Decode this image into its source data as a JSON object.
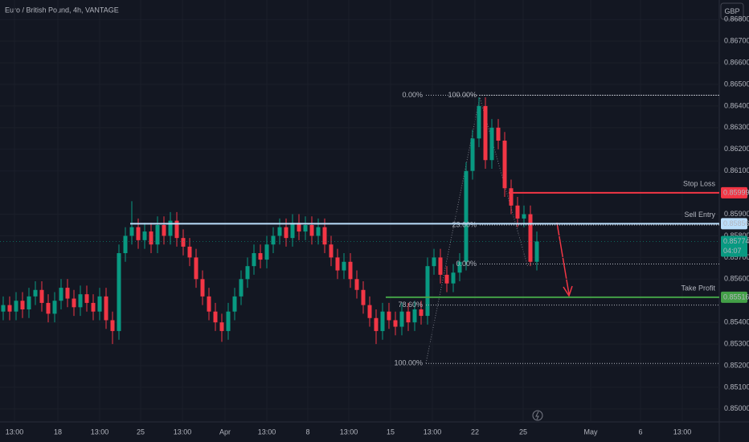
{
  "chart_data": {
    "type": "candlestick",
    "title": "Euro / British Pound, 4h, VANTAGE",
    "currency": "GBP",
    "ylim": [
      0.8494,
      0.8689
    ],
    "yticks": [
      {
        "value": 0.868,
        "label": "0.86800"
      },
      {
        "value": 0.867,
        "label": "0.86700"
      },
      {
        "value": 0.866,
        "label": "0.86600"
      },
      {
        "value": 0.865,
        "label": "0.86500"
      },
      {
        "value": 0.864,
        "label": "0.86400"
      },
      {
        "value": 0.863,
        "label": "0.86300"
      },
      {
        "value": 0.862,
        "label": "0.86200"
      },
      {
        "value": 0.861,
        "label": "0.86100"
      },
      {
        "value": 0.859,
        "label": "0.85900"
      },
      {
        "value": 0.858,
        "label": "0.85800"
      },
      {
        "value": 0.857,
        "label": "0.85700"
      },
      {
        "value": 0.856,
        "label": "0.85600"
      },
      {
        "value": 0.854,
        "label": "0.85400"
      },
      {
        "value": 0.853,
        "label": "0.85300"
      },
      {
        "value": 0.852,
        "label": "0.85200"
      },
      {
        "value": 0.851,
        "label": "0.85100"
      },
      {
        "value": 0.85,
        "label": "0.85000"
      }
    ],
    "x_labels": [
      "13:00",
      "18",
      "13:00",
      "25",
      "13:00",
      "Apr",
      "13:00",
      "8",
      "13:00",
      "15",
      "13:00",
      "22",
      "25",
      "May",
      "6",
      "13:00"
    ],
    "up_color": "#089981",
    "down_color": "#f23645",
    "open": [
      0.8545,
      0.8548,
      0.8545,
      0.855,
      0.8546,
      0.8552,
      0.8555,
      0.8549,
      0.8544,
      0.855,
      0.8556,
      0.8551,
      0.8547,
      0.8553,
      0.8549,
      0.8545,
      0.8552,
      0.8541,
      0.8536,
      0.8572,
      0.858,
      0.8584,
      0.8578,
      0.8582,
      0.8576,
      0.8585,
      0.858,
      0.8587,
      0.8579,
      0.8575,
      0.857,
      0.856,
      0.8552,
      0.8545,
      0.854,
      0.8536,
      0.8545,
      0.8552,
      0.856,
      0.8566,
      0.8572,
      0.8569,
      0.8576,
      0.858,
      0.8584,
      0.8579,
      0.8586,
      0.8582,
      0.8585,
      0.858,
      0.8584,
      0.8576,
      0.857,
      0.8564,
      0.8568,
      0.856,
      0.8555,
      0.8548,
      0.8542,
      0.8536,
      0.8545,
      0.8541,
      0.8538,
      0.8545,
      0.854,
      0.8546,
      0.8543,
      0.8566,
      0.857,
      0.8562,
      0.8558,
      0.8563,
      0.8568,
      0.861,
      0.8625,
      0.864,
      0.8615,
      0.863,
      0.8624,
      0.8602,
      0.8594,
      0.8588,
      0.859,
      0.8568
    ],
    "high": [
      0.8552,
      0.8552,
      0.8554,
      0.8554,
      0.8556,
      0.8559,
      0.8559,
      0.8553,
      0.8554,
      0.856,
      0.856,
      0.8555,
      0.8557,
      0.8557,
      0.8553,
      0.8556,
      0.8556,
      0.8545,
      0.8576,
      0.8584,
      0.8596,
      0.8588,
      0.8586,
      0.8586,
      0.8589,
      0.8589,
      0.8591,
      0.8591,
      0.8583,
      0.8579,
      0.8574,
      0.8564,
      0.8556,
      0.8549,
      0.8544,
      0.8549,
      0.8556,
      0.8564,
      0.857,
      0.8576,
      0.8576,
      0.858,
      0.8584,
      0.8588,
      0.8588,
      0.859,
      0.859,
      0.8589,
      0.8589,
      0.8588,
      0.8588,
      0.858,
      0.8574,
      0.8572,
      0.8572,
      0.8564,
      0.8559,
      0.8552,
      0.8546,
      0.8549,
      0.8549,
      0.8545,
      0.8549,
      0.8549,
      0.855,
      0.855,
      0.857,
      0.8574,
      0.8574,
      0.8566,
      0.8567,
      0.8572,
      0.8614,
      0.8629,
      0.8644,
      0.8644,
      0.8634,
      0.8634,
      0.8628,
      0.8606,
      0.8598,
      0.8594,
      0.8594,
      0.8582
    ],
    "low": [
      0.8541,
      0.8541,
      0.8541,
      0.8542,
      0.8542,
      0.8548,
      0.8545,
      0.854,
      0.854,
      0.8546,
      0.8547,
      0.8543,
      0.8543,
      0.8545,
      0.8541,
      0.8541,
      0.8537,
      0.853,
      0.8532,
      0.8568,
      0.8576,
      0.8574,
      0.8574,
      0.8572,
      0.8572,
      0.8576,
      0.8576,
      0.8575,
      0.8571,
      0.8566,
      0.8556,
      0.8548,
      0.8541,
      0.8536,
      0.8531,
      0.8532,
      0.8541,
      0.8548,
      0.8556,
      0.8562,
      0.8565,
      0.8565,
      0.8572,
      0.8576,
      0.8575,
      0.8575,
      0.8578,
      0.8578,
      0.8576,
      0.8576,
      0.8572,
      0.8566,
      0.856,
      0.856,
      0.8556,
      0.8551,
      0.8544,
      0.8538,
      0.853,
      0.8532,
      0.8537,
      0.8534,
      0.8534,
      0.8536,
      0.8536,
      0.8539,
      0.8539,
      0.8562,
      0.8558,
      0.8554,
      0.8554,
      0.8559,
      0.8564,
      0.8606,
      0.8621,
      0.8611,
      0.8611,
      0.862,
      0.8598,
      0.859,
      0.8584,
      0.8584,
      0.8566,
      0.8564
    ],
    "close": [
      0.8548,
      0.8545,
      0.855,
      0.8546,
      0.8552,
      0.8555,
      0.8549,
      0.8544,
      0.855,
      0.8556,
      0.8551,
      0.8547,
      0.8553,
      0.8549,
      0.8545,
      0.8552,
      0.8541,
      0.8536,
      0.8572,
      0.858,
      0.8584,
      0.8578,
      0.8582,
      0.8576,
      0.8585,
      0.858,
      0.8587,
      0.8579,
      0.8575,
      0.857,
      0.856,
      0.8552,
      0.8545,
      0.854,
      0.8536,
      0.8545,
      0.8552,
      0.856,
      0.8566,
      0.8572,
      0.8569,
      0.8576,
      0.858,
      0.8584,
      0.8579,
      0.8586,
      0.8582,
      0.8585,
      0.858,
      0.8584,
      0.8576,
      0.857,
      0.8564,
      0.8568,
      0.856,
      0.8555,
      0.8548,
      0.8542,
      0.8536,
      0.8545,
      0.8541,
      0.8538,
      0.8545,
      0.854,
      0.8546,
      0.8543,
      0.8566,
      0.857,
      0.8562,
      0.8558,
      0.8563,
      0.8568,
      0.861,
      0.8625,
      0.864,
      0.8615,
      0.863,
      0.8624,
      0.8602,
      0.8594,
      0.8588,
      0.859,
      0.8568,
      0.85774
    ],
    "levels": [
      {
        "name": "Stop Loss",
        "value": 0.85999,
        "color": "#f23645"
      },
      {
        "name": "Sell Entry",
        "value": 0.85856,
        "color": "#bbdefb"
      },
      {
        "name": "Take Profit",
        "value": 0.85516,
        "color": "#43a047"
      }
    ],
    "last_price": {
      "value": 0.85774,
      "countdown": "04:07",
      "color": "#089981"
    },
    "fibs": [
      {
        "levels": [
          {
            "label": "0.00%",
            "value": 0.8645
          },
          {
            "label": "78.60%",
            "value": 0.8548
          },
          {
            "label": "100.00%",
            "value": 0.8521
          }
        ]
      },
      {
        "levels": [
          {
            "label": "100.00%",
            "value": 0.8645
          },
          {
            "label": "23.60%",
            "value": 0.8585
          },
          {
            "label": "0.00%",
            "value": 0.8567
          }
        ]
      }
    ]
  }
}
